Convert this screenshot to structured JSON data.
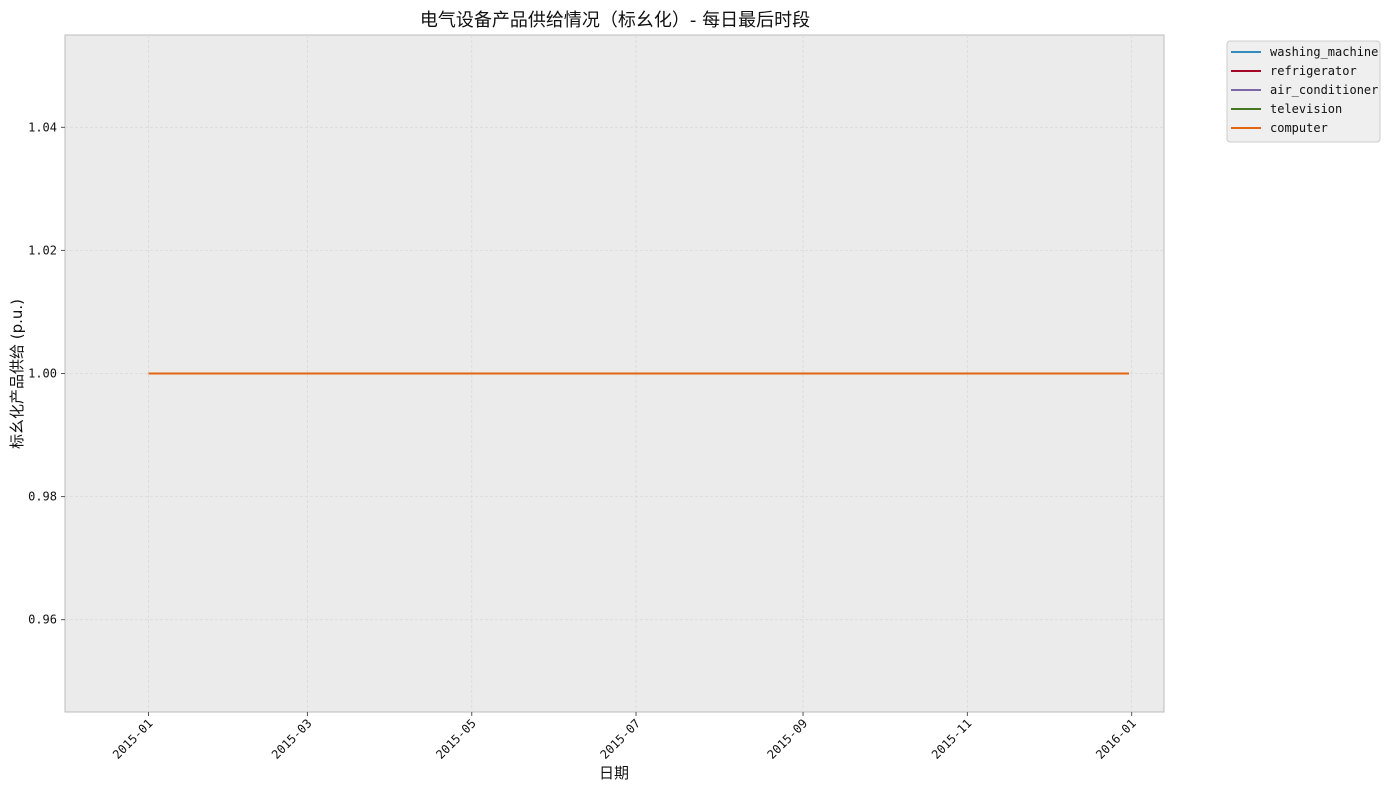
{
  "chart_data": {
    "type": "line",
    "title": "电气设备产品供给情况（标幺化）- 每日最后时段",
    "xlabel": "日期",
    "ylabel": "标幺化产品供给 (p.u.)",
    "x_range": [
      "2014-12-01",
      "2016-01-13"
    ],
    "x_tick_labels": [
      "2015-01",
      "2015-03",
      "2015-05",
      "2015-07",
      "2015-09",
      "2015-11",
      "2016-01"
    ],
    "x_tick_dates": [
      "2015-01-01",
      "2015-03-01",
      "2015-05-01",
      "2015-07-01",
      "2015-09-01",
      "2015-11-01",
      "2016-01-01"
    ],
    "ylim": [
      0.945,
      1.055
    ],
    "y_ticks": [
      0.96,
      0.98,
      1.0,
      1.02,
      1.04
    ],
    "y_tick_labels": [
      "0.96",
      "0.98",
      "1.00",
      "1.02",
      "1.04"
    ],
    "grid": true,
    "legend_position": "outside-top-right",
    "series": [
      {
        "name": "washing_machine",
        "color": "#348ABD",
        "x": [
          "2015-01-01",
          "2015-12-31"
        ],
        "y": [
          1.0,
          1.0
        ]
      },
      {
        "name": "refrigerator",
        "color": "#A60628",
        "x": [
          "2015-01-01",
          "2015-12-31"
        ],
        "y": [
          1.0,
          1.0
        ]
      },
      {
        "name": "air_conditioner",
        "color": "#7A68A6",
        "x": [
          "2015-01-01",
          "2015-12-31"
        ],
        "y": [
          1.0,
          1.0
        ]
      },
      {
        "name": "television",
        "color": "#467821",
        "x": [
          "2015-01-01",
          "2015-12-31"
        ],
        "y": [
          1.0,
          1.0
        ]
      },
      {
        "name": "computer",
        "color": "#E5640F",
        "x": [
          "2015-01-01",
          "2015-12-31"
        ],
        "y": [
          1.0,
          1.0
        ]
      }
    ]
  }
}
